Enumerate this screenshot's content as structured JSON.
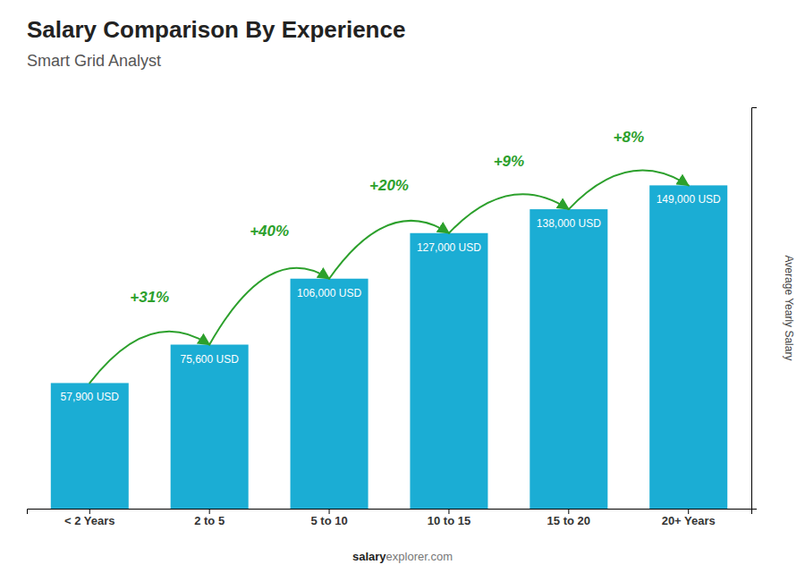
{
  "chart_data": {
    "type": "bar",
    "title": "Salary Comparison By Experience",
    "subtitle": "Smart Grid Analyst",
    "y_label": "Average Yearly Salary",
    "categories": [
      "< 2 Years",
      "2 to 5",
      "5 to 10",
      "10 to 15",
      "15 to 20",
      "20+ Years"
    ],
    "values": [
      57900,
      75600,
      106000,
      127000,
      138000,
      149000
    ],
    "value_labels": [
      "57,900 USD",
      "75,600 USD",
      "106,000 USD",
      "127,000 USD",
      "138,000 USD",
      "149,000 USD"
    ],
    "data_labels": true,
    "annotations": [
      "+31%",
      "+40%",
      "+20%",
      "+9%",
      "+8%"
    ],
    "footer": [
      "salary",
      "explorer.com"
    ],
    "color": "#1badd4",
    "ylim": [
      0,
      185000
    ],
    "tick_labels": "x"
  }
}
